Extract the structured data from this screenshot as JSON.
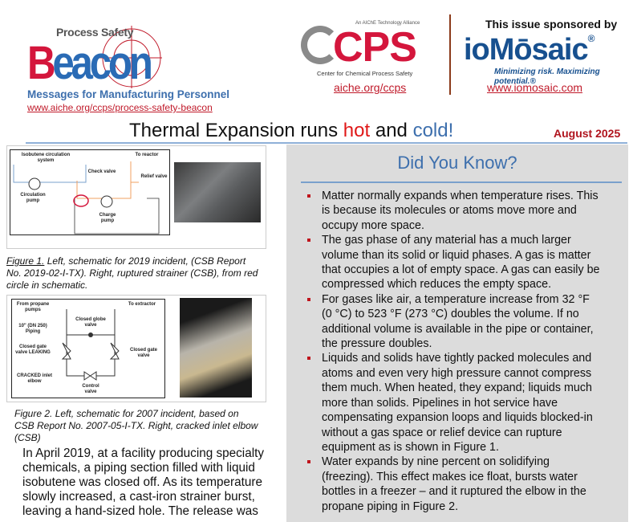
{
  "header": {
    "beacon_logo": {
      "top": "Process Safety",
      "word_b": "B",
      "word_rest": "eacon"
    },
    "tagline": "Messages for Manufacturing Personnel",
    "beacon_url": "www.aiche.org/ccps/process-safety-beacon",
    "ccps": {
      "alliance": "An AIChE Technology Alliance",
      "word": "CPS",
      "subtitle": "Center for Chemical Process Safety",
      "url": "aiche.org/ccps"
    },
    "sponsor": {
      "label": "This issue sponsored by",
      "name": "ioMōsaic",
      "mark": "®",
      "tagline": "Minimizing risk. Maximizing potential.®",
      "url": "www.iomosaic.com"
    },
    "title": {
      "part1": "Thermal Expansion runs ",
      "hot": "hot",
      "part2": " and ",
      "cold": "cold!"
    },
    "date": "August 2025"
  },
  "figure1": {
    "labels": {
      "system": "Isobutene circulation system",
      "check": "Check valve",
      "reactor": "To reactor",
      "circ_pump": "Circulation pump",
      "relief": "Relief valve",
      "charge": "Charge pump"
    },
    "caption_lead": "Figure 1.",
    "caption_lines": [
      "  Left, schematic for  2019 incident, (CSB Report",
      "No. 2019-02-I-TX). Right, ruptured strainer (CSB), from red",
      "circle in schematic."
    ]
  },
  "figure2": {
    "labels": {
      "from": "From propane pumps",
      "to": "To extractor",
      "globe": "Closed globe valve",
      "piping": "10\" (DN 250) Piping",
      "gate_left": "Closed gate valve LEAKING",
      "gate_right": "Closed gate valve",
      "elbow": "CRACKED inlet elbow",
      "control": "Control valve"
    },
    "caption_lines": [
      "Figure 2. Left, schematic for  2007 incident, based on",
      "CSB Report No. 2007-05-I-TX. Right, cracked inlet elbow",
      "(CSB)"
    ]
  },
  "body_lines": [
    "In April 2019, at a facility producing specialty",
    "chemicals, a piping section filled with liquid",
    "isobutene was closed off. As its temperature",
    "slowly increased, a cast-iron strainer burst,",
    "leaving a hand-sized hole. The release was"
  ],
  "panel": {
    "heading": "Did You Know?",
    "bullets": [
      [
        "Matter normally expands when temperature rises. This",
        "is because its molecules or atoms move more and",
        "occupy more space."
      ],
      [
        "The gas phase of any material has a much larger",
        "volume than its solid or liquid phases. A gas is matter",
        "that occupies a lot of empty space. A gas can easily be",
        "compressed which reduces the empty space."
      ],
      [
        "For gases like air, a temperature increase from 32 °F",
        "(0 °C) to 523 °F (273 °C) doubles the volume. If no",
        "additional volume is available in the pipe or container,",
        "the pressure doubles."
      ],
      [
        "Liquids and solids have tightly packed molecules and",
        "atoms and even very high pressure cannot compress",
        "them much. When heated, they expand; liquids much",
        "more than solids. Pipelines in hot service have",
        "compensating expansion loops and liquids blocked-in",
        "without a gas space or relief device can rupture",
        "equipment as is shown in Figure 1."
      ],
      [
        "Water expands by nine percent on solidifying",
        "(freezing). This effect makes ice float, bursts water",
        "bottles in a freezer – and it ruptured the elbow in the",
        "propane piping in Figure 2."
      ]
    ]
  },
  "colors": {
    "accent_red": "#d4163c",
    "accent_blue": "#3d6fad",
    "panel_bg": "#dcdcdc",
    "sponsor_blue": "#17508f"
  }
}
